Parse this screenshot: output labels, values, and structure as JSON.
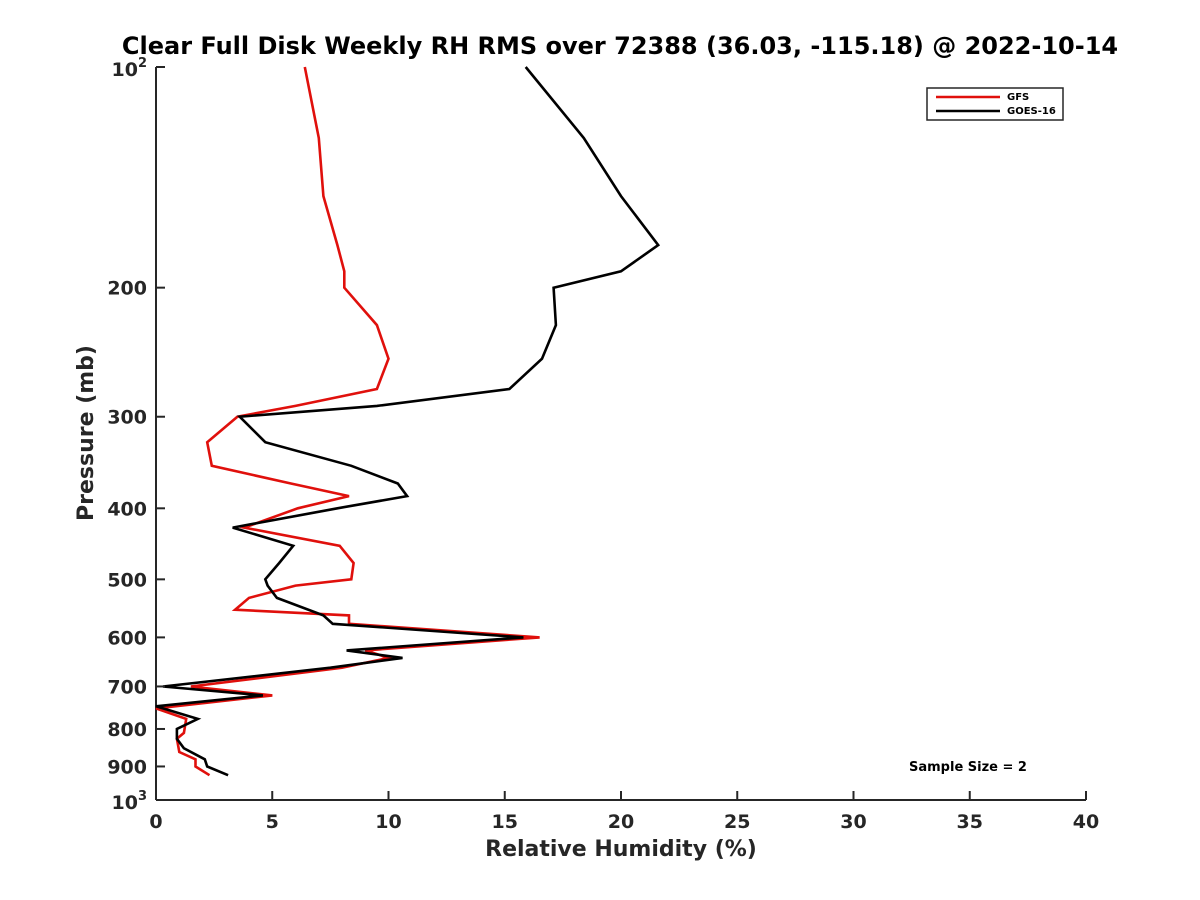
{
  "colors": {
    "gfs": "#e0100c",
    "goes": "#000000",
    "axis": "#262626"
  },
  "chart_data": {
    "type": "line",
    "title": "Clear Full Disk Weekly RH RMS over 72388 (36.03, -115.18) @ 2022-10-14",
    "xlabel": "Relative Humidity (%)",
    "ylabel": "Pressure (mb)",
    "xlim": [
      0,
      40
    ],
    "ylim": [
      100,
      1000
    ],
    "y_scale": "log",
    "y_reversed": true,
    "grid": false,
    "legend_position": "top-right",
    "x_tick_labels": [
      "0",
      "5",
      "10",
      "15",
      "20",
      "25",
      "30",
      "35",
      "40"
    ],
    "y_tick_labels": [
      {
        "value": 100,
        "base": "10",
        "exp": "2"
      },
      {
        "value": 200,
        "text": "200"
      },
      {
        "value": 300,
        "text": "300"
      },
      {
        "value": 400,
        "text": "400"
      },
      {
        "value": 500,
        "text": "500"
      },
      {
        "value": 600,
        "text": "600"
      },
      {
        "value": 700,
        "text": "700"
      },
      {
        "value": 800,
        "text": "800"
      },
      {
        "value": 900,
        "text": "900"
      },
      {
        "value": 1000,
        "base": "10",
        "exp": "3"
      }
    ],
    "annotation": "Sample Size = 2",
    "series": [
      {
        "name": "GFS",
        "color": "#e0100c",
        "points": [
          {
            "rh": 6.4,
            "p": 100
          },
          {
            "rh": 7.0,
            "p": 125
          },
          {
            "rh": 7.2,
            "p": 150
          },
          {
            "rh": 7.8,
            "p": 175
          },
          {
            "rh": 8.1,
            "p": 190
          },
          {
            "rh": 8.1,
            "p": 200
          },
          {
            "rh": 9.5,
            "p": 225
          },
          {
            "rh": 10.0,
            "p": 250
          },
          {
            "rh": 9.5,
            "p": 275
          },
          {
            "rh": 6.0,
            "p": 290
          },
          {
            "rh": 3.5,
            "p": 300
          },
          {
            "rh": 2.2,
            "p": 325
          },
          {
            "rh": 2.4,
            "p": 350
          },
          {
            "rh": 5.8,
            "p": 370
          },
          {
            "rh": 8.3,
            "p": 385
          },
          {
            "rh": 6.1,
            "p": 400
          },
          {
            "rh": 3.8,
            "p": 425
          },
          {
            "rh": 7.9,
            "p": 450
          },
          {
            "rh": 8.5,
            "p": 475
          },
          {
            "rh": 8.4,
            "p": 500
          },
          {
            "rh": 6.0,
            "p": 510
          },
          {
            "rh": 4.0,
            "p": 530
          },
          {
            "rh": 3.4,
            "p": 550
          },
          {
            "rh": 8.3,
            "p": 560
          },
          {
            "rh": 8.3,
            "p": 575
          },
          {
            "rh": 16.5,
            "p": 600
          },
          {
            "rh": 9.0,
            "p": 625
          },
          {
            "rh": 10.0,
            "p": 640
          },
          {
            "rh": 8.0,
            "p": 660
          },
          {
            "rh": 1.5,
            "p": 700
          },
          {
            "rh": 5.0,
            "p": 720
          },
          {
            "rh": 0.0,
            "p": 750
          },
          {
            "rh": 1.3,
            "p": 775
          },
          {
            "rh": 1.2,
            "p": 810
          },
          {
            "rh": 0.9,
            "p": 825
          },
          {
            "rh": 1.0,
            "p": 860
          },
          {
            "rh": 1.7,
            "p": 880
          },
          {
            "rh": 1.7,
            "p": 900
          },
          {
            "rh": 2.3,
            "p": 925
          }
        ]
      },
      {
        "name": "GOES-16",
        "color": "#000000",
        "points": [
          {
            "rh": 15.9,
            "p": 100
          },
          {
            "rh": 18.4,
            "p": 125
          },
          {
            "rh": 20.0,
            "p": 150
          },
          {
            "rh": 21.6,
            "p": 175
          },
          {
            "rh": 20.0,
            "p": 190
          },
          {
            "rh": 17.1,
            "p": 200
          },
          {
            "rh": 17.2,
            "p": 225
          },
          {
            "rh": 16.6,
            "p": 250
          },
          {
            "rh": 15.2,
            "p": 275
          },
          {
            "rh": 9.5,
            "p": 290
          },
          {
            "rh": 3.6,
            "p": 300
          },
          {
            "rh": 4.7,
            "p": 325
          },
          {
            "rh": 8.4,
            "p": 350
          },
          {
            "rh": 10.4,
            "p": 370
          },
          {
            "rh": 10.8,
            "p": 385
          },
          {
            "rh": 7.8,
            "p": 400
          },
          {
            "rh": 3.3,
            "p": 425
          },
          {
            "rh": 5.9,
            "p": 450
          },
          {
            "rh": 5.3,
            "p": 475
          },
          {
            "rh": 4.7,
            "p": 500
          },
          {
            "rh": 4.8,
            "p": 510
          },
          {
            "rh": 5.2,
            "p": 530
          },
          {
            "rh": 7.2,
            "p": 560
          },
          {
            "rh": 7.6,
            "p": 575
          },
          {
            "rh": 15.8,
            "p": 600
          },
          {
            "rh": 8.2,
            "p": 625
          },
          {
            "rh": 10.6,
            "p": 640
          },
          {
            "rh": 7.5,
            "p": 660
          },
          {
            "rh": 0.3,
            "p": 700
          },
          {
            "rh": 4.6,
            "p": 720
          },
          {
            "rh": 0.0,
            "p": 745
          },
          {
            "rh": 1.8,
            "p": 775
          },
          {
            "rh": 0.9,
            "p": 800
          },
          {
            "rh": 0.9,
            "p": 825
          },
          {
            "rh": 1.2,
            "p": 850
          },
          {
            "rh": 2.1,
            "p": 880
          },
          {
            "rh": 2.2,
            "p": 900
          },
          {
            "rh": 3.1,
            "p": 925
          }
        ]
      }
    ]
  }
}
